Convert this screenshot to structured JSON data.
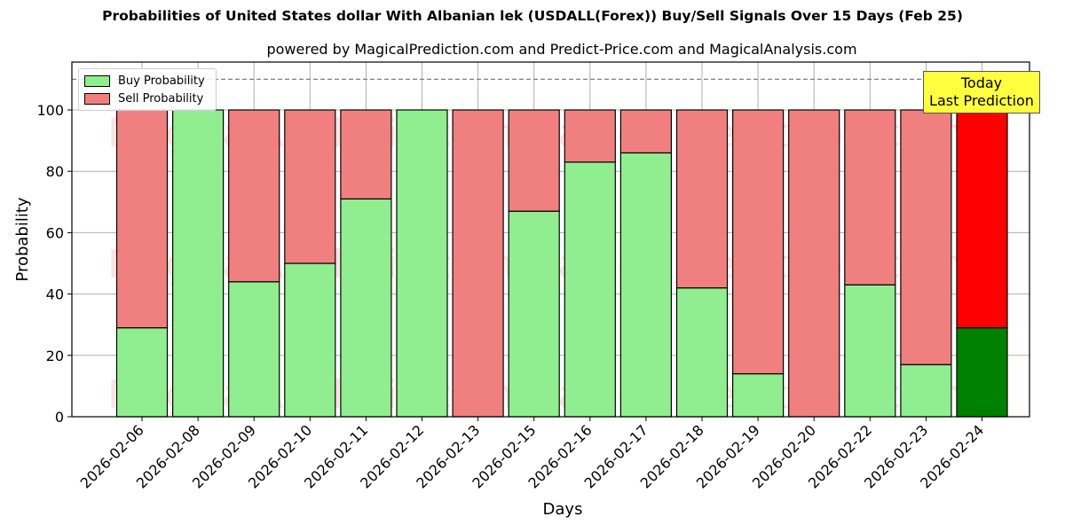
{
  "title": "Probabilities of United States dollar With Albanian lek (USDALL(Forex)) Buy/Sell Signals Over 15 Days (Feb 25)",
  "subtitle": "powered by MagicalPrediction.com and Predict-Price.com and MagicalAnalysis.com",
  "legend": {
    "buy_label": "Buy Probability",
    "sell_label": "Sell Probability"
  },
  "annotation": {
    "line1": "Today",
    "line2": "Last Prediction"
  },
  "watermarks": [
    "MagicalAnalysis.com",
    "MagicalPrediction.com"
  ],
  "colors": {
    "buy": "#90ee90",
    "sell": "#f08080",
    "today_buy": "#008000",
    "today_sell": "#ff0000",
    "annotation_bg": "#ffff40"
  },
  "chart_data": {
    "type": "bar",
    "stacked": true,
    "title": "Probabilities of United States dollar With Albanian lek (USDALL(Forex)) Buy/Sell Signals Over 15 Days (Feb 25)",
    "subtitle": "powered by MagicalPrediction.com and Predict-Price.com and MagicalAnalysis.com",
    "xlabel": "Days",
    "ylabel": "Probability",
    "ylim": [
      0,
      115
    ],
    "yticks": [
      0,
      20,
      40,
      60,
      80,
      100
    ],
    "grid": true,
    "legend_position": "upper left",
    "reference_line": {
      "y": 110,
      "style": "dashed"
    },
    "categories": [
      "2026-02-06",
      "2026-02-08",
      "2026-02-09",
      "2026-02-10",
      "2026-02-11",
      "2026-02-12",
      "2026-02-13",
      "2026-02-15",
      "2026-02-16",
      "2026-02-17",
      "2026-02-18",
      "2026-02-19",
      "2026-02-20",
      "2026-02-22",
      "2026-02-23",
      "2026-02-24"
    ],
    "series": [
      {
        "name": "Buy Probability",
        "values": [
          29,
          100,
          44,
          50,
          71,
          100,
          0,
          67,
          83,
          86,
          42,
          14,
          0,
          43,
          17,
          29
        ]
      },
      {
        "name": "Sell Probability",
        "values": [
          71,
          0,
          56,
          50,
          29,
          0,
          100,
          33,
          17,
          14,
          58,
          86,
          100,
          57,
          83,
          71
        ]
      }
    ],
    "highlight": {
      "category": "2026-02-24",
      "label": "Today Last Prediction"
    }
  }
}
